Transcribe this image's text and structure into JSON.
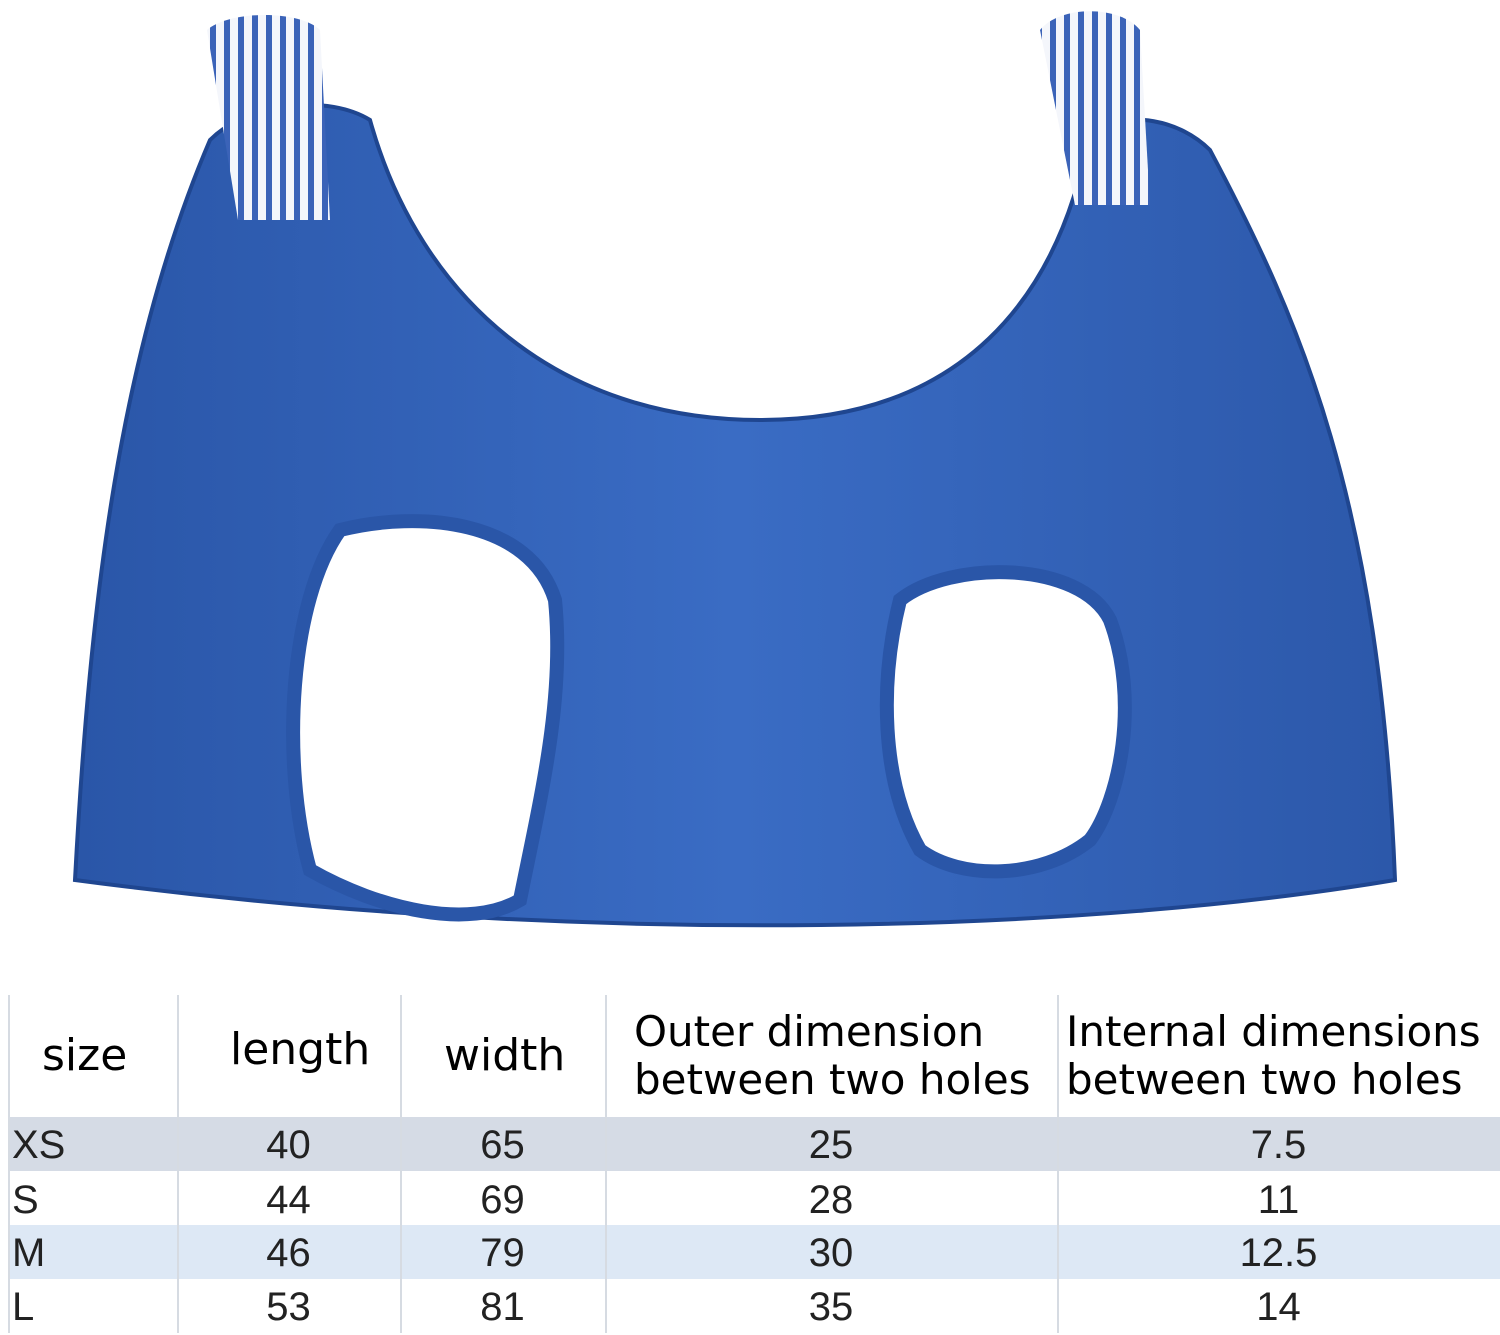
{
  "product_image": {
    "subject": "blue mesh pet grooming sling with two leg holes and striped straps",
    "colors": {
      "fabric": "#2f5fb4",
      "strap": "#ffffff"
    }
  },
  "size_table": {
    "headers": [
      "size",
      "length",
      "width",
      "Outer dimension between two holes",
      "Internal dimensions between two holes"
    ],
    "rows": [
      {
        "size": "XS",
        "length": "40",
        "width": "65",
        "outer": "25",
        "internal": "7.5"
      },
      {
        "size": "S",
        "length": "44",
        "width": "69",
        "outer": "28",
        "internal": "11"
      },
      {
        "size": "M",
        "length": "46",
        "width": "79",
        "outer": "30",
        "internal": "12.5"
      },
      {
        "size": "L",
        "length": "53",
        "width": "81",
        "outer": "35",
        "internal": "14"
      }
    ],
    "row_colors": [
      "#d5dbe5",
      "#ffffff",
      "#dde8f5",
      "#ffffff"
    ]
  }
}
